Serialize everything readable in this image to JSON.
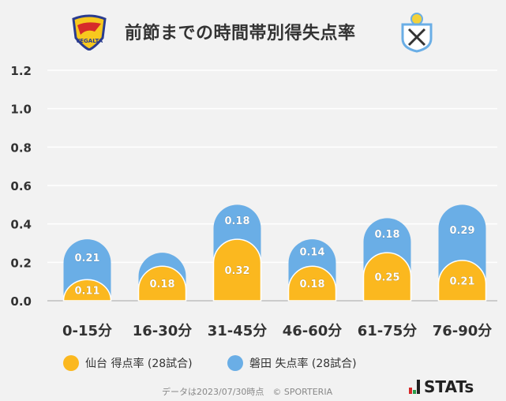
{
  "header": {
    "title": "前節までの時間帯別得失点率",
    "home_logo": "VEGALTA",
    "away_logo": "Jubilo Iwata"
  },
  "legend": {
    "home": "仙台 得点率 (28試合)",
    "away": "磐田 失点率 (28試合)"
  },
  "footer": {
    "note": "データは2023/07/30時点　© SPORTERIA",
    "brand": "STATs"
  },
  "colors": {
    "home": "#fbb81f",
    "away": "#6aaee6"
  },
  "chart_data": {
    "type": "bar",
    "stacked": true,
    "title": "前節までの時間帯別得失点率",
    "categories": [
      "0-15分",
      "16-30分",
      "31-45分",
      "46-60分",
      "61-75分",
      "76-90分"
    ],
    "series": [
      {
        "name": "仙台 得点率 (28試合)",
        "values": [
          0.11,
          0.18,
          0.32,
          0.18,
          0.25,
          0.21
        ],
        "labels": [
          "0.11",
          "0.18",
          "0.32",
          "0.18",
          "0.25",
          "0.21"
        ]
      },
      {
        "name": "磐田 失点率 (28試合)",
        "values": [
          0.21,
          0.07,
          0.18,
          0.14,
          0.18,
          0.29
        ],
        "labels": [
          "0.21",
          null,
          "0.18",
          "0.14",
          "0.18",
          "0.29"
        ]
      }
    ],
    "yticks": [
      "0.0",
      "0.2",
      "0.4",
      "0.6",
      "0.8",
      "1.0",
      "1.2"
    ],
    "ylim": [
      0,
      1.2
    ],
    "grid": true,
    "legend_position": "bottom"
  }
}
